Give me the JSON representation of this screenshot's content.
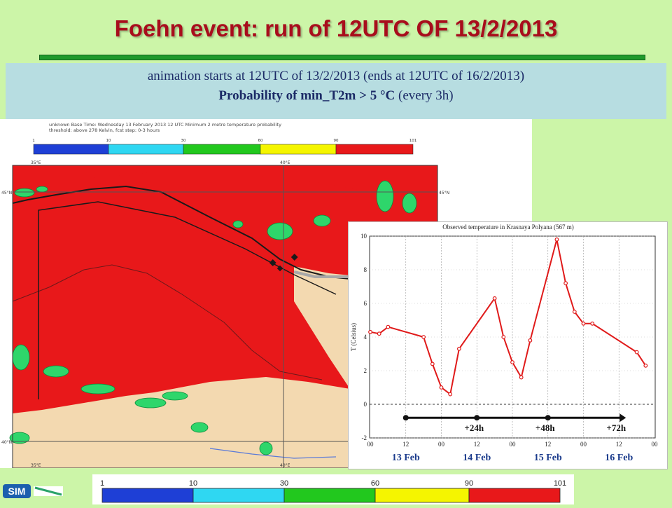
{
  "slide": {
    "title": "Foehn event: run of 12UTC OF 13/2/2013",
    "info_line1": "animation starts at 12UTC of 13/2/2013 (ends at 12UTC of 16/2/2013)",
    "info_line2_bold": "Probability of min_T2m > 5 °C",
    "info_line2_rest": " (every 3h)"
  },
  "map": {
    "header_line1": "unknown  Base Time: Wednesday 13 February 2013 12 UTC  Minimum 2 metre temperature probability",
    "header_line2": "threshold: above 278 Kelvin, fcst step: 0-3 hours",
    "lon_labels": [
      "35°E",
      "40°E"
    ],
    "lat_labels": [
      "45°N",
      "40°N"
    ],
    "colorbar_ticks": [
      "1",
      "10",
      "30",
      "60",
      "90",
      "101"
    ],
    "colorbar_colors": [
      "#1e3fd6",
      "#2fd7f2",
      "#22c81e",
      "#f5f500",
      "#e8181a"
    ],
    "sea_color": "#e8181a",
    "land_color": "#f3d9b0"
  },
  "legend_bar": {
    "ticks": [
      "1",
      "10",
      "30",
      "60",
      "90",
      "101"
    ],
    "colors": [
      "#1e3fd6",
      "#2fd7f2",
      "#22c81e",
      "#f5f500",
      "#e8181a"
    ]
  },
  "logo_text": "SIM",
  "chart_data": {
    "type": "line",
    "title": "Observed temperature in Krasnaya Polyana (567 m)",
    "ylabel": "T (Celsius)",
    "xlabel": "",
    "ylim": [
      -2,
      10
    ],
    "yticks": [
      -2,
      0,
      2,
      4,
      6,
      8,
      10
    ],
    "x_hour_ticks": [
      "00",
      "12",
      "00",
      "12",
      "00",
      "12",
      "00",
      "12",
      "00"
    ],
    "day_labels": [
      "13 Feb",
      "14 Feb",
      "15 Feb",
      "16 Feb"
    ],
    "forecast_labels": [
      "+24h",
      "+48h",
      "+72h"
    ],
    "series_color": "#e01a1a",
    "series": [
      {
        "x_hours": [
          0,
          3,
          6,
          18,
          21,
          24,
          27,
          30,
          42,
          45,
          48,
          51,
          54,
          63,
          66,
          69,
          72,
          75,
          90,
          93
        ],
        "values": [
          4.3,
          4.2,
          4.6,
          4.0,
          2.4,
          1.0,
          0.6,
          3.3,
          6.3,
          4.0,
          2.5,
          1.6,
          3.8,
          9.8,
          7.2,
          5.5,
          4.8,
          4.8,
          3.1,
          2.3
        ]
      }
    ]
  }
}
